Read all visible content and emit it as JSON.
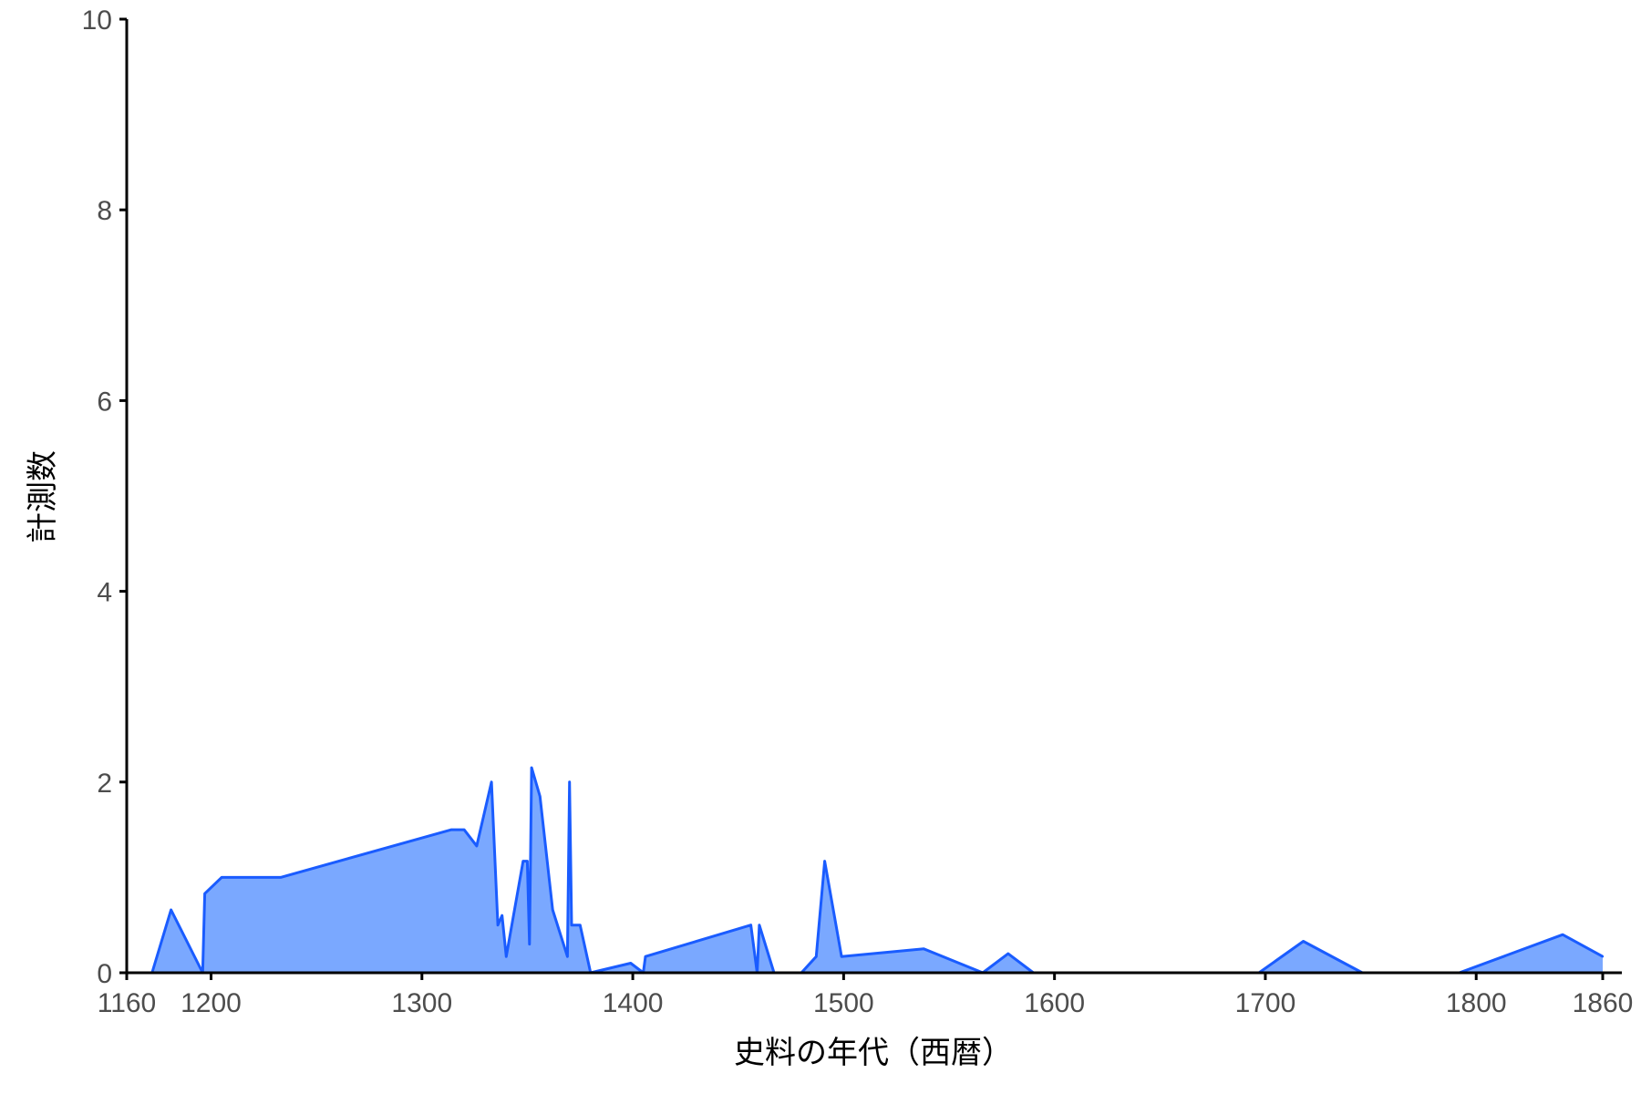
{
  "chart_data": {
    "type": "area",
    "title": "",
    "xlabel": "史料の年代（西暦）",
    "ylabel": "計測数",
    "xlim": [
      1160,
      1860
    ],
    "ylim": [
      0,
      10
    ],
    "x_ticks": [
      1160,
      1200,
      1300,
      1400,
      1500,
      1600,
      1700,
      1800,
      1860
    ],
    "y_ticks": [
      0,
      2,
      4,
      6,
      8,
      10
    ],
    "grid": false,
    "legend": "none",
    "fill_color": "#7aa8ff",
    "line_color": "#1a5cff",
    "points": [
      [
        1172,
        0
      ],
      [
        1181,
        0.66
      ],
      [
        1196,
        0
      ],
      [
        1197,
        0.83
      ],
      [
        1205,
        1
      ],
      [
        1233,
        1
      ],
      [
        1314,
        1.5
      ],
      [
        1320,
        1.5
      ],
      [
        1326,
        1.33
      ],
      [
        1333,
        2
      ],
      [
        1336,
        0.5
      ],
      [
        1338,
        0.6
      ],
      [
        1340,
        0.17
      ],
      [
        1348,
        1.17
      ],
      [
        1350,
        1.17
      ],
      [
        1351,
        0.3
      ],
      [
        1352,
        2.15
      ],
      [
        1356,
        1.85
      ],
      [
        1362,
        0.66
      ],
      [
        1369,
        0.17
      ],
      [
        1370,
        2
      ],
      [
        1371,
        0.5
      ],
      [
        1375,
        0.5
      ],
      [
        1380,
        0
      ],
      [
        1399,
        0.1
      ],
      [
        1405,
        0
      ],
      [
        1406,
        0.17
      ],
      [
        1456,
        0.5
      ],
      [
        1459,
        0
      ],
      [
        1460,
        0.5
      ],
      [
        1467,
        0
      ],
      [
        1480,
        0
      ],
      [
        1487,
        0.17
      ],
      [
        1491,
        1.17
      ],
      [
        1499,
        0.17
      ],
      [
        1538,
        0.25
      ],
      [
        1566,
        0
      ],
      [
        1578,
        0.2
      ],
      [
        1590,
        0
      ],
      [
        1697,
        0
      ],
      [
        1718,
        0.33
      ],
      [
        1746,
        0
      ],
      [
        1792,
        0
      ],
      [
        1841,
        0.4
      ],
      [
        1860,
        0.17
      ]
    ]
  }
}
